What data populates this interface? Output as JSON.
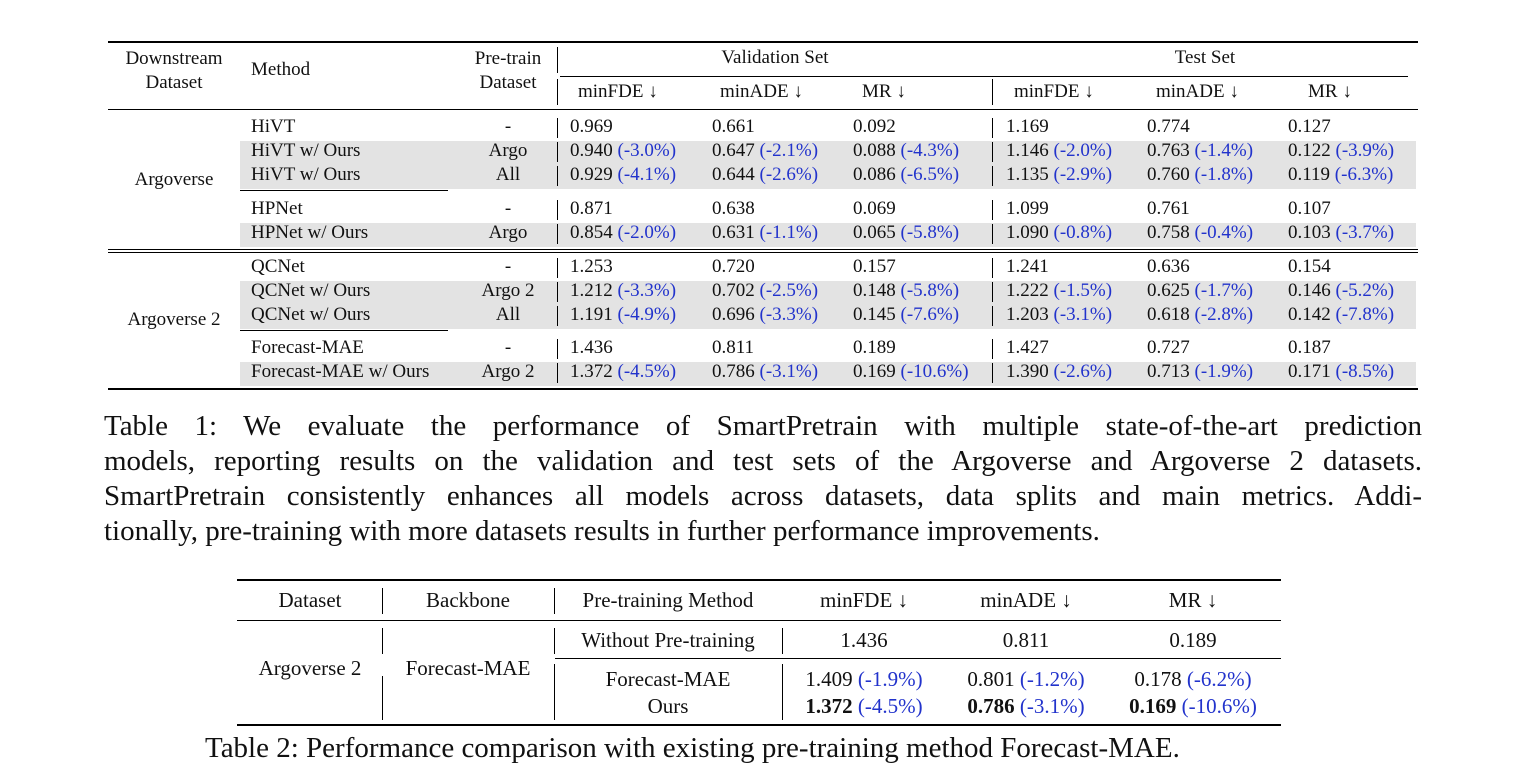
{
  "table1": {
    "headers": {
      "downstream_line1": "Downstream",
      "downstream_line2": "Dataset",
      "method": "Method",
      "pretrain_line1": "Pre-train",
      "pretrain_line2": "Dataset",
      "validation_set": "Validation Set",
      "test_set": "Test Set",
      "metrics": [
        "minFDE ↓",
        "minADE ↓",
        "MR ↓",
        "minFDE ↓",
        "minADE ↓",
        "MR ↓"
      ]
    },
    "groups": [
      {
        "dataset": "Argoverse",
        "blocks": [
          {
            "rows": [
              {
                "method": "HiVT",
                "pretrain": "-",
                "cells": [
                  [
                    "0.969",
                    ""
                  ],
                  [
                    "0.661",
                    ""
                  ],
                  [
                    "0.092",
                    ""
                  ],
                  [
                    "1.169",
                    ""
                  ],
                  [
                    "0.774",
                    ""
                  ],
                  [
                    "0.127",
                    ""
                  ]
                ]
              },
              {
                "method": "HiVT w/ Ours",
                "pretrain": "Argo",
                "cells": [
                  [
                    "0.940",
                    "(-3.0%)"
                  ],
                  [
                    "0.647",
                    "(-2.1%)"
                  ],
                  [
                    "0.088",
                    "(-4.3%)"
                  ],
                  [
                    "1.146",
                    "(-2.0%)"
                  ],
                  [
                    "0.763",
                    "(-1.4%)"
                  ],
                  [
                    "0.122",
                    "(-3.9%)"
                  ]
                ]
              },
              {
                "method": "HiVT w/ Ours",
                "pretrain": "All",
                "cells": [
                  [
                    "0.929",
                    "(-4.1%)"
                  ],
                  [
                    "0.644",
                    "(-2.6%)"
                  ],
                  [
                    "0.086",
                    "(-6.5%)"
                  ],
                  [
                    "1.135",
                    "(-2.9%)"
                  ],
                  [
                    "0.760",
                    "(-1.8%)"
                  ],
                  [
                    "0.119",
                    "(-6.3%)"
                  ]
                ]
              }
            ]
          },
          {
            "rows": [
              {
                "method": "HPNet",
                "pretrain": "-",
                "cells": [
                  [
                    "0.871",
                    ""
                  ],
                  [
                    "0.638",
                    ""
                  ],
                  [
                    "0.069",
                    ""
                  ],
                  [
                    "1.099",
                    ""
                  ],
                  [
                    "0.761",
                    ""
                  ],
                  [
                    "0.107",
                    ""
                  ]
                ]
              },
              {
                "method": "HPNet w/ Ours",
                "pretrain": "Argo",
                "cells": [
                  [
                    "0.854",
                    "(-2.0%)"
                  ],
                  [
                    "0.631",
                    "(-1.1%)"
                  ],
                  [
                    "0.065",
                    "(-5.8%)"
                  ],
                  [
                    "1.090",
                    "(-0.8%)"
                  ],
                  [
                    "0.758",
                    "(-0.4%)"
                  ],
                  [
                    "0.103",
                    "(-3.7%)"
                  ]
                ]
              }
            ]
          }
        ]
      },
      {
        "dataset": "Argoverse 2",
        "blocks": [
          {
            "rows": [
              {
                "method": "QCNet",
                "pretrain": "-",
                "cells": [
                  [
                    "1.253",
                    ""
                  ],
                  [
                    "0.720",
                    ""
                  ],
                  [
                    "0.157",
                    ""
                  ],
                  [
                    "1.241",
                    ""
                  ],
                  [
                    "0.636",
                    ""
                  ],
                  [
                    "0.154",
                    ""
                  ]
                ]
              },
              {
                "method": "QCNet w/ Ours",
                "pretrain": "Argo 2",
                "cells": [
                  [
                    "1.212",
                    "(-3.3%)"
                  ],
                  [
                    "0.702",
                    "(-2.5%)"
                  ],
                  [
                    "0.148",
                    "(-5.8%)"
                  ],
                  [
                    "1.222",
                    "(-1.5%)"
                  ],
                  [
                    "0.625",
                    "(-1.7%)"
                  ],
                  [
                    "0.146",
                    "(-5.2%)"
                  ]
                ]
              },
              {
                "method": "QCNet w/ Ours",
                "pretrain": "All",
                "cells": [
                  [
                    "1.191",
                    "(-4.9%)"
                  ],
                  [
                    "0.696",
                    "(-3.3%)"
                  ],
                  [
                    "0.145",
                    "(-7.6%)"
                  ],
                  [
                    "1.203",
                    "(-3.1%)"
                  ],
                  [
                    "0.618",
                    "(-2.8%)"
                  ],
                  [
                    "0.142",
                    "(-7.8%)"
                  ]
                ]
              }
            ]
          },
          {
            "rows": [
              {
                "method": "Forecast-MAE",
                "pretrain": "-",
                "cells": [
                  [
                    "1.436",
                    ""
                  ],
                  [
                    "0.811",
                    ""
                  ],
                  [
                    "0.189",
                    ""
                  ],
                  [
                    "1.427",
                    ""
                  ],
                  [
                    "0.727",
                    ""
                  ],
                  [
                    "0.187",
                    ""
                  ]
                ]
              },
              {
                "method": "Forecast-MAE w/ Ours",
                "pretrain": "Argo 2",
                "cells": [
                  [
                    "1.372",
                    "(-4.5%)"
                  ],
                  [
                    "0.786",
                    "(-3.1%)"
                  ],
                  [
                    "0.169",
                    "(-10.6%)"
                  ],
                  [
                    "1.390",
                    "(-2.6%)"
                  ],
                  [
                    "0.713",
                    "(-1.9%)"
                  ],
                  [
                    "0.171",
                    "(-8.5%)"
                  ]
                ]
              }
            ]
          }
        ]
      }
    ],
    "caption": "Table 1: We evaluate the performance of SmartPretrain with multiple state-of-the-art prediction models, reporting results on the validation and test sets of the Argoverse and Argoverse 2 datasets. SmartPretrain consistently enhances all models across datasets, data splits and main metrics. Additionally, pre-training with more datasets results in further performance improvements.",
    "caption_lines": [
      "Table 1: We evaluate the performance of SmartPretrain with multiple state-of-the-art prediction",
      "models, reporting results on the validation and test sets of the Argoverse and Argoverse 2 datasets.",
      "SmartPretrain consistently enhances all models across datasets, data splits and main metrics. Addi-",
      "tionally, pre-training with more datasets results in further performance improvements."
    ]
  },
  "table2": {
    "headers": [
      "Dataset",
      "Backbone",
      "Pre-training Method",
      "minFDE ↓",
      "minADE ↓",
      "MR ↓"
    ],
    "dataset": "Argoverse 2",
    "backbone": "Forecast-MAE",
    "rows": [
      {
        "method": "Without Pre-training",
        "cells": [
          [
            "1.436",
            ""
          ],
          [
            "0.811",
            ""
          ],
          [
            "0.189",
            ""
          ]
        ],
        "bold": false
      },
      {
        "method": "Forecast-MAE",
        "cells": [
          [
            "1.409",
            "(-1.9%)"
          ],
          [
            "0.801",
            "(-1.2%)"
          ],
          [
            "0.178",
            "(-6.2%)"
          ]
        ],
        "bold": false
      },
      {
        "method": "Ours",
        "cells": [
          [
            "1.372",
            "(-4.5%)"
          ],
          [
            "0.786",
            "(-3.1%)"
          ],
          [
            "0.169",
            "(-10.6%)"
          ]
        ],
        "bold": true
      }
    ],
    "caption": "Table 2: Performance comparison with existing pre-training method Forecast-MAE."
  },
  "colors": {
    "improvement": "#2233cc",
    "shade": "#e3e3e3"
  }
}
